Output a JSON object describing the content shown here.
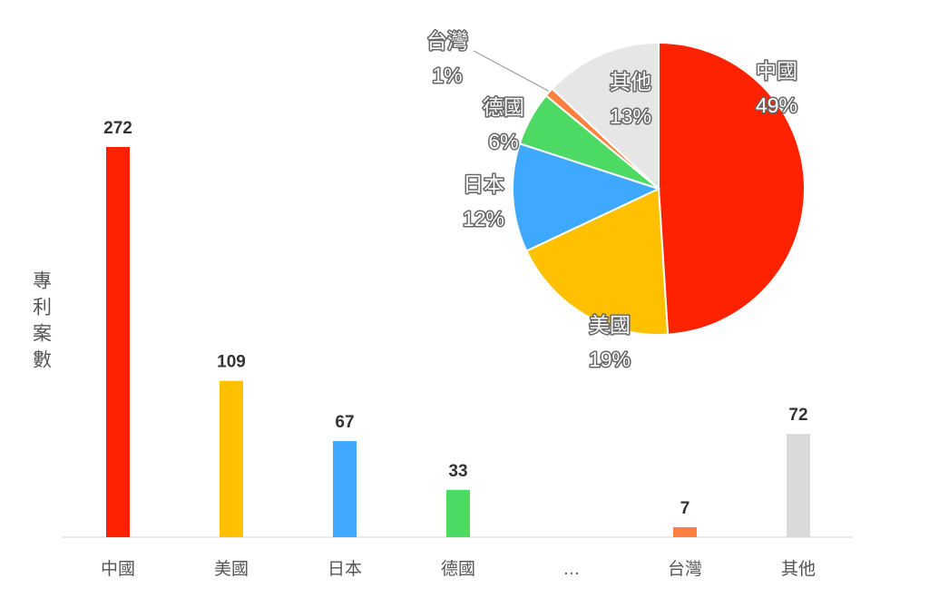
{
  "chart_data": [
    {
      "type": "bar",
      "y_label": "專利案數",
      "categories": [
        "中國",
        "美國",
        "日本",
        "德國",
        "…",
        "台灣",
        "其他"
      ],
      "values": [
        272,
        109,
        67,
        33,
        null,
        7,
        72
      ],
      "colors": [
        "#ff2200",
        "#ffc000",
        "#3fa9ff",
        "#4cd964",
        null,
        "#ff7f3f",
        "#d9d9d9"
      ]
    },
    {
      "type": "pie",
      "categories": [
        "中國",
        "美國",
        "日本",
        "德國",
        "台灣",
        "其他"
      ],
      "values": [
        49,
        19,
        12,
        6,
        1,
        13
      ],
      "value_labels": [
        "49%",
        "19%",
        "12%",
        "6%",
        "1%",
        "13%"
      ],
      "colors": [
        "#ff2200",
        "#ffc000",
        "#3fa9ff",
        "#4cd964",
        "#ff7f3f",
        "#e6e6e6"
      ]
    }
  ]
}
